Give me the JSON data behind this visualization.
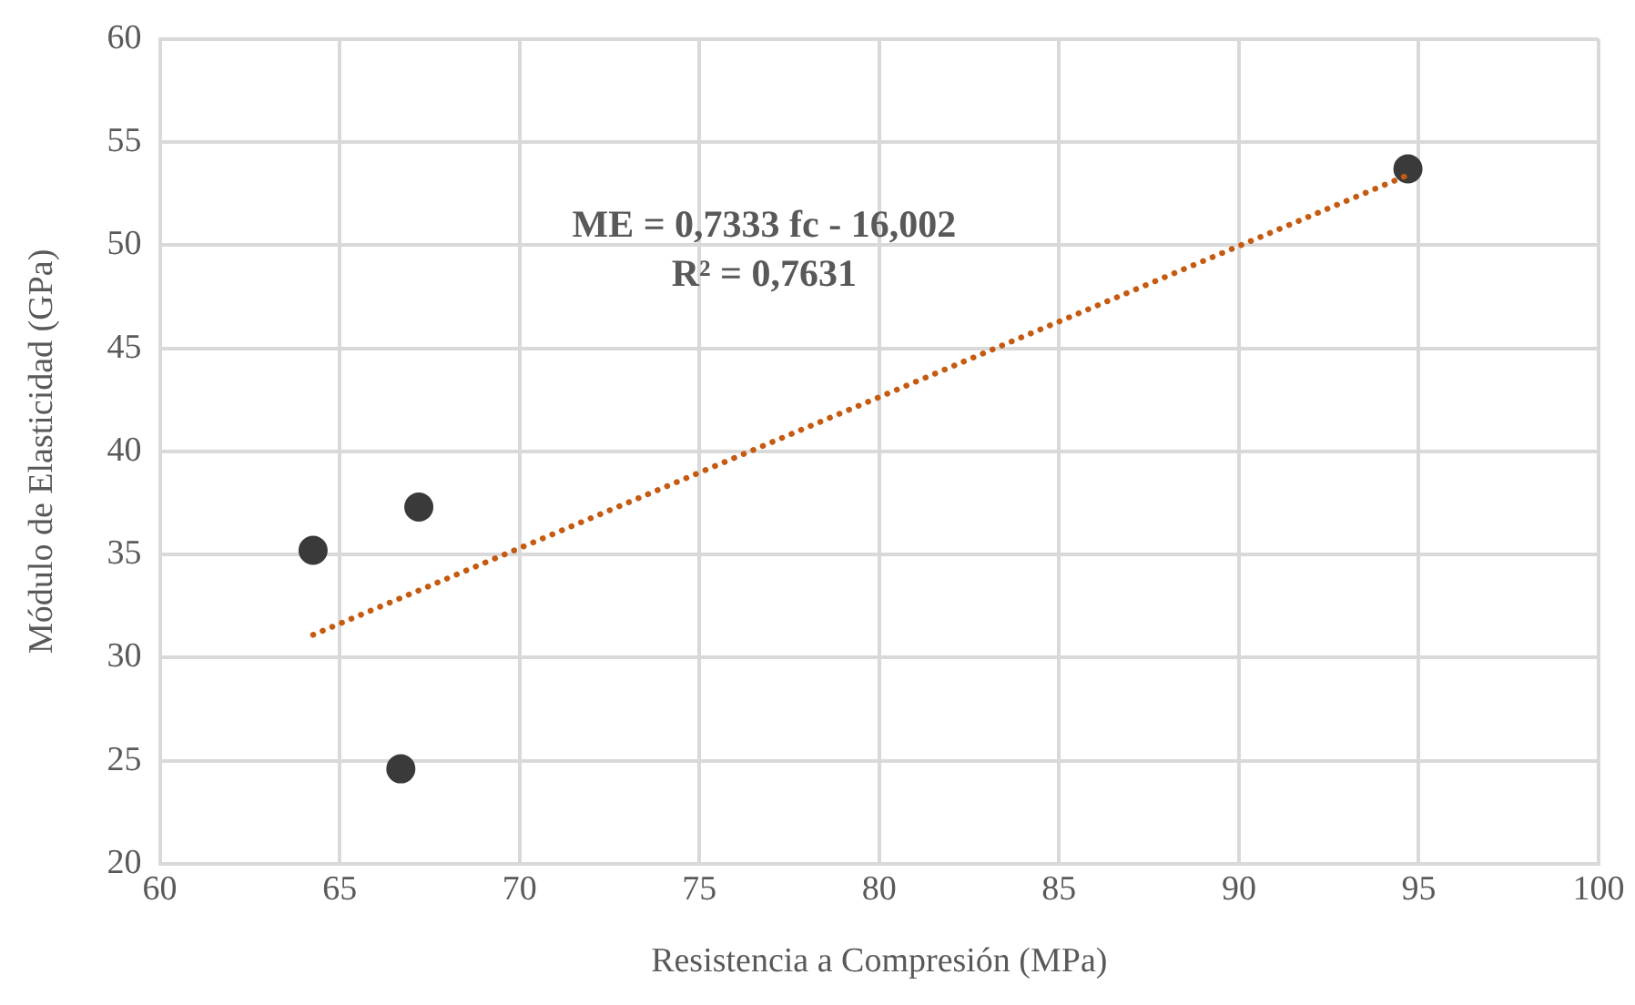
{
  "chart_data": {
    "type": "scatter",
    "xlabel": "Resistencia a Compresión (MPa)",
    "ylabel": "Módulo de Elasticidad (GPa)",
    "series": [
      {
        "color": "#3a3a3a",
        "marker": "circle",
        "x": [
          64.26,
          67.2,
          66.7,
          94.7
        ],
        "values": [
          35.2,
          37.3,
          24.6,
          53.7
        ]
      },
      {
        "type": "line",
        "color": "#c55a11",
        "line_style": "dotted",
        "marker": "none",
        "x": [
          64.26,
          94.7
        ],
        "values": [
          31.1,
          53.4
        ]
      }
    ],
    "annotations": [
      "ME = 0,7333 fc - 16,002",
      "R² = 0,7631"
    ],
    "xlim": [
      60,
      100
    ],
    "xticks": [
      60,
      65,
      70,
      75,
      80,
      85,
      90,
      95,
      100
    ],
    "ylim": [
      20,
      60
    ],
    "yticks": [
      20,
      25,
      30,
      35,
      40,
      45,
      50,
      55,
      60
    ],
    "grid": true,
    "legend": false
  }
}
